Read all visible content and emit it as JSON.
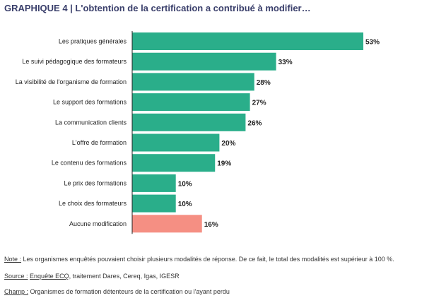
{
  "title": "GRAPHIQUE 4 | L'obtention de la certification a contribué à modifier…",
  "chart_data": {
    "type": "bar",
    "orientation": "horizontal",
    "categories": [
      "Les pratiques générales",
      "Le suivi pédagogique des formateurs",
      "La visibilité de l'organisme de formation",
      "Le support des formations",
      "La communication clients",
      "L'offre de formation",
      "Le contenu des formations",
      "Le prix des formations",
      "Le choix des formateurs",
      "Aucune modification"
    ],
    "values": [
      53,
      33,
      28,
      27,
      26,
      20,
      19,
      10,
      10,
      16
    ],
    "value_labels": [
      "53%",
      "33%",
      "28%",
      "27%",
      "26%",
      "20%",
      "19%",
      "10%",
      "10%",
      "16%"
    ],
    "unit": "%",
    "colors": {
      "default": "#2aae8a",
      "highlight": "#f58f83"
    },
    "highlight_category": "Aucune modification",
    "grid": false,
    "xlim": [
      0,
      53
    ]
  },
  "notes": {
    "note_label": "Note :",
    "note_text": " Les organismes enquêtés pouvaient choisir plusieurs modalités de réponse. De ce fait, le total des modalités est supérieur à 100 %.",
    "source_label": "Source :",
    "source_link": "Enquête ECQ",
    "source_text": ", traitement Dares, Cereq, Igas, IGESR",
    "champ_label": "Champ :",
    "champ_text": " Organismes de formation détenteurs de la certification ou l'ayant perdu"
  }
}
